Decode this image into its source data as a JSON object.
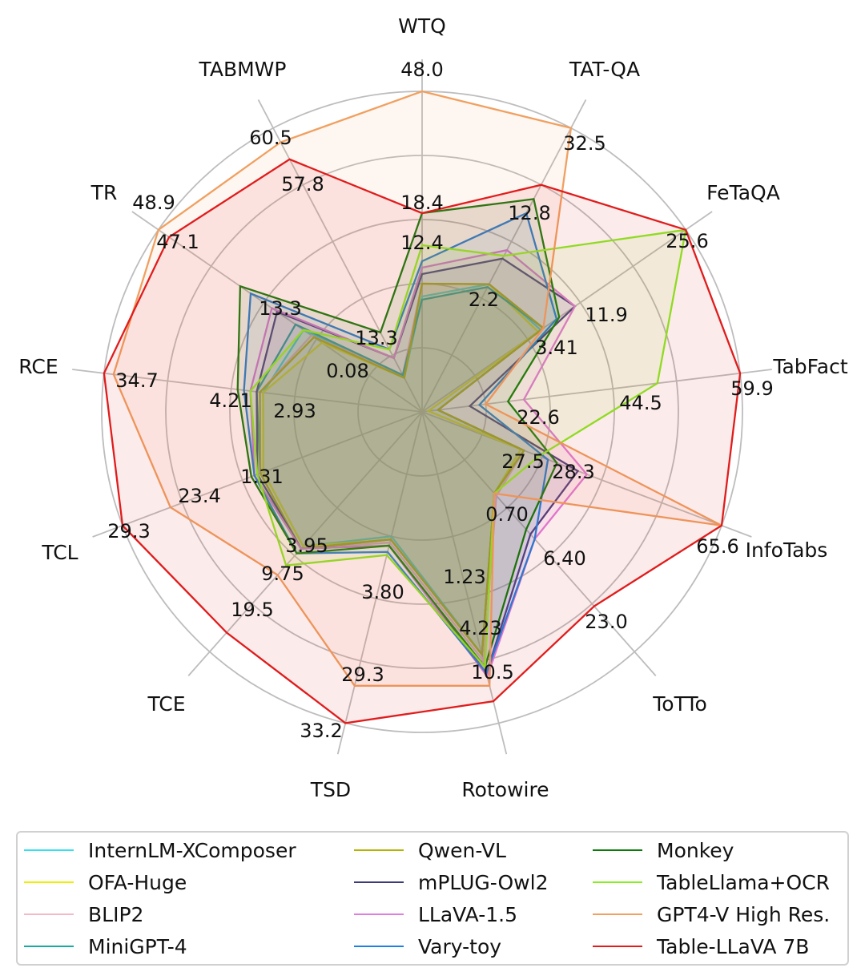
{
  "chart_data": {
    "type": "radar",
    "axes": [
      "WTQ",
      "TAT-QA",
      "FeTaQA",
      "TabFact",
      "InfoTabs",
      "ToTTo",
      "Rotowire",
      "TSD",
      "TCE",
      "TCL",
      "RCE",
      "TR",
      "TABMWP"
    ],
    "axis_max": [
      48.0,
      32.5,
      25.6,
      59.9,
      65.6,
      23.0,
      10.5,
      33.2,
      19.5,
      29.3,
      34.7,
      48.9,
      60.5
    ],
    "value_labels": [
      [
        "48.0",
        "18.4",
        "12.4"
      ],
      [
        "32.5",
        "12.8",
        "2.2"
      ],
      [
        "25.6",
        "11.9",
        "3.41"
      ],
      [
        "59.9",
        "44.5",
        "22.6"
      ],
      [
        "65.6",
        "28.3",
        "27.5"
      ],
      [
        "23.0",
        "6.40",
        "0.70"
      ],
      [
        "10.5",
        "4.23",
        "1.23"
      ],
      [
        "33.2",
        "29.3",
        "3.80"
      ],
      [
        "19.5",
        "9.75",
        "3.95"
      ],
      [
        "29.3",
        "23.4",
        "1.31"
      ],
      [
        "34.7",
        "4.21",
        "2.93"
      ],
      [
        "48.9",
        "47.1",
        "13.3"
      ],
      [
        "60.5",
        "57.8",
        "13.3",
        "0.08"
      ]
    ],
    "grid": true,
    "legend_position": "bottom",
    "series": [
      {
        "name": "InternLM-XComposer",
        "color": "#33e0f0",
        "values": [
          0.36,
          0.45,
          0.45,
          0.05,
          0.33,
          0.34,
          0.78,
          0.4,
          0.56,
          0.53,
          0.5,
          0.45,
          0.12
        ]
      },
      {
        "name": "OFA-Huge",
        "color": "#eeee00",
        "values": [
          0.4,
          0.45,
          0.44,
          0.02,
          0.33,
          0.34,
          0.78,
          0.41,
          0.56,
          0.53,
          0.5,
          0.38,
          0.12
        ]
      },
      {
        "name": "BLIP2",
        "color": "#f4b8c8",
        "values": [
          0.4,
          0.45,
          0.46,
          0.05,
          0.34,
          0.35,
          0.8,
          0.42,
          0.57,
          0.54,
          0.51,
          0.42,
          0.13
        ]
      },
      {
        "name": "MiniGPT-4",
        "color": "#1aaaa0",
        "values": [
          0.35,
          0.44,
          0.46,
          0.05,
          0.34,
          0.34,
          0.78,
          0.41,
          0.57,
          0.54,
          0.52,
          0.48,
          0.13
        ]
      },
      {
        "name": "Qwen-VL",
        "color": "#b3b300",
        "values": [
          0.4,
          0.45,
          0.46,
          0.05,
          0.34,
          0.34,
          0.78,
          0.41,
          0.57,
          0.54,
          0.51,
          0.41,
          0.12
        ]
      },
      {
        "name": "mPLUG-Owl2",
        "color": "#3b3b7a",
        "values": [
          0.43,
          0.54,
          0.58,
          0.15,
          0.52,
          0.51,
          0.84,
          0.43,
          0.57,
          0.55,
          0.52,
          0.55,
          0.19
        ]
      },
      {
        "name": "LLaVA-1.5",
        "color": "#e07de0",
        "values": [
          0.45,
          0.57,
          0.58,
          0.32,
          0.55,
          0.53,
          0.85,
          0.43,
          0.57,
          0.56,
          0.54,
          0.57,
          0.19
        ]
      },
      {
        "name": "Vary-toy",
        "color": "#2080e0",
        "values": [
          0.47,
          0.7,
          0.51,
          0.18,
          0.42,
          0.53,
          0.84,
          0.45,
          0.59,
          0.56,
          0.56,
          0.65,
          0.22
        ]
      },
      {
        "name": "Monkey",
        "color": "#0a7a0a",
        "values": [
          0.62,
          0.75,
          0.52,
          0.27,
          0.45,
          0.49,
          0.82,
          0.43,
          0.59,
          0.57,
          0.58,
          0.69,
          0.28
        ]
      },
      {
        "name": "TableLlama+OCR",
        "color": "#88ee22",
        "values": [
          0.52,
          0.55,
          1.0,
          0.74,
          0.39,
          0.34,
          0.82,
          0.46,
          0.64,
          0.55,
          0.54,
          0.45,
          0.22
        ]
      },
      {
        "name": "GPT4-V High Res.",
        "color": "#f0a060",
        "values": [
          1.0,
          1.0,
          0.46,
          0.2,
          1.0,
          0.34,
          0.88,
          0.88,
          0.68,
          0.84,
          0.97,
          1.0,
          0.95
        ]
      },
      {
        "name": "Table-LLaVA 7B",
        "color": "#e01c1c",
        "values": [
          0.62,
          0.8,
          1.0,
          1.0,
          1.0,
          0.81,
          0.93,
          1.0,
          0.92,
          1.0,
          1.0,
          0.96,
          0.89
        ]
      }
    ]
  }
}
